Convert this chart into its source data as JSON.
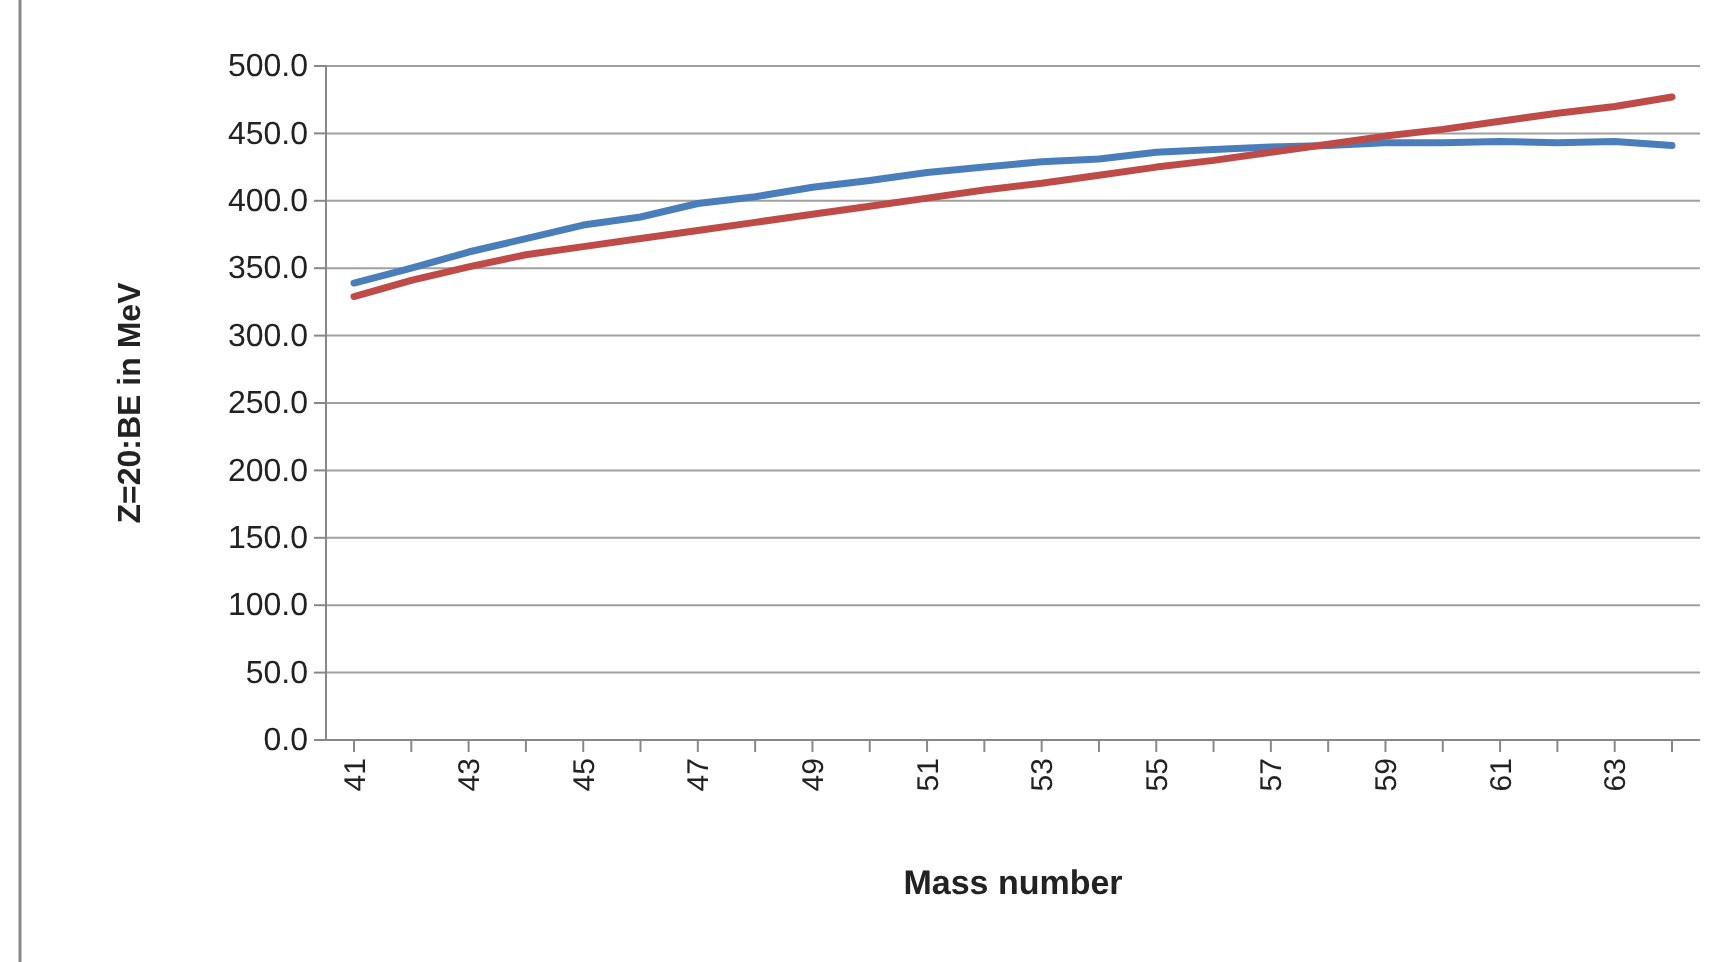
{
  "chart_data": {
    "type": "line",
    "xlabel": "Mass number",
    "ylabel": "Z=20:BE in MeV",
    "categories": [
      "41",
      null,
      "43",
      null,
      "45",
      null,
      "47",
      null,
      "49",
      null,
      "51",
      null,
      "53",
      null,
      "55",
      null,
      "57",
      null,
      "59",
      null,
      "61",
      null,
      "63",
      null
    ],
    "series": [
      {
        "color": "#4a7ebb",
        "values": [
          339,
          350,
          362,
          372,
          382,
          388,
          398,
          403,
          410,
          415,
          421,
          425,
          429,
          431,
          436,
          438,
          440,
          441,
          443,
          443,
          444,
          443,
          444,
          441
        ]
      },
      {
        "color": "#be4b48",
        "values": [
          329,
          341,
          351,
          360,
          366,
          372,
          378,
          384,
          390,
          396,
          402,
          408,
          413,
          419,
          425,
          430,
          436,
          442,
          448,
          453,
          459,
          465,
          470,
          477
        ]
      }
    ],
    "ylim": [
      0,
      500
    ],
    "yticks": [
      {
        "value": 0,
        "label": "0.0"
      },
      {
        "value": 50,
        "label": "50.0"
      },
      {
        "value": 100,
        "label": "100.0"
      },
      {
        "value": 150,
        "label": "150.0"
      },
      {
        "value": 200,
        "label": "200.0"
      },
      {
        "value": 250,
        "label": "250.0"
      },
      {
        "value": 300,
        "label": "300.0"
      },
      {
        "value": 350,
        "label": "350.0"
      },
      {
        "value": 400,
        "label": "400.0"
      },
      {
        "value": 450,
        "label": "450.0"
      },
      {
        "value": 500,
        "label": "500.0"
      }
    ],
    "grid": "y",
    "marker": "none",
    "line_style": "solid"
  }
}
